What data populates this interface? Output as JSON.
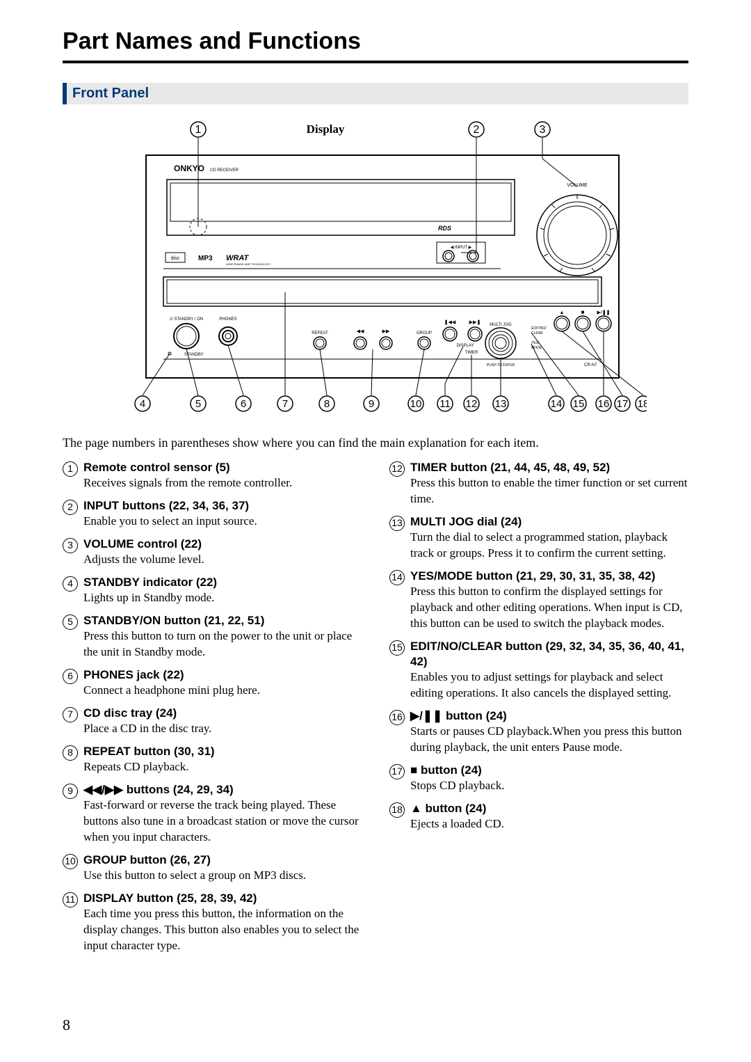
{
  "page": {
    "title": "Part Names and Functions",
    "section": "Front Panel",
    "intro": "The page numbers in parentheses show where you can find the main explanation for each item.",
    "page_number": "8"
  },
  "diagram": {
    "display_label": "Display",
    "brand": "ONKYO",
    "brand_sub": "CD RECEIVER",
    "rds": "RDS",
    "volume": "VOLUME",
    "input_label": "INPUT",
    "mp3": "MP3",
    "wrat": "WRAT",
    "wrat_sub": "WIDE RANGE AMP TECHNOLOGY",
    "standby_on": "STANDBY / ON",
    "standby": "STANDBY",
    "phones": "PHONES",
    "repeat": "REPEAT",
    "group": "GROUP",
    "multi_jog": "MULTI JOG",
    "push_enter": "PUSH TO ENTER",
    "model": "CR-N7",
    "display_btn": "DISPLAY",
    "timer_btn": "TIMER",
    "editno": "EDIT/NO/",
    "clear": "CLEAR",
    "yes": "YES/",
    "mode": "MODE",
    "top_callouts": [
      "1",
      "2",
      "3"
    ],
    "bottom_callouts": [
      "4",
      "5",
      "6",
      "7",
      "8",
      "9",
      "10",
      "11",
      "12",
      "13",
      "14",
      "15",
      "16",
      "17",
      "18"
    ]
  },
  "items_left": [
    {
      "n": "1",
      "title": "Remote control sensor (5)",
      "desc": "Receives signals from the remote controller."
    },
    {
      "n": "2",
      "title": "INPUT buttons (22, 34, 36, 37)",
      "desc": "Enable you to select an input source."
    },
    {
      "n": "3",
      "title": "VOLUME control (22)",
      "desc": "Adjusts the volume level."
    },
    {
      "n": "4",
      "title": "STANDBY indicator (22)",
      "desc": "Lights up in Standby mode."
    },
    {
      "n": "5",
      "title": "STANDBY/ON button (21, 22, 51)",
      "desc": "Press this button to turn on the power to the unit or place the unit in Standby mode."
    },
    {
      "n": "6",
      "title": "PHONES jack (22)",
      "desc": "Connect a headphone mini plug here."
    },
    {
      "n": "7",
      "title": "CD disc tray (24)",
      "desc": "Place a CD in the disc tray."
    },
    {
      "n": "8",
      "title": "REPEAT button (30, 31)",
      "desc": "Repeats CD playback."
    },
    {
      "n": "9",
      "title": "◀◀/▶▶ buttons (24, 29, 34)",
      "desc": "Fast-forward or reverse the track being played. These buttons also tune in a broadcast station or move the cursor when you input characters."
    },
    {
      "n": "10",
      "title": "GROUP button (26, 27)",
      "desc": "Use this button to select a group on MP3 discs."
    },
    {
      "n": "11",
      "title": "DISPLAY button (25, 28, 39, 42)",
      "desc": "Each time you press this button, the information on the display changes. This button also enables you to select the input character type."
    }
  ],
  "items_right": [
    {
      "n": "12",
      "title": "TIMER button (21, 44, 45, 48, 49, 52)",
      "desc": "Press this button to enable the timer function or set current time."
    },
    {
      "n": "13",
      "title": "MULTI JOG dial (24)",
      "desc": "Turn the dial to select a programmed station, playback track or groups. Press it to confirm the current setting."
    },
    {
      "n": "14",
      "title": "YES/MODE button (21, 29, 30, 31, 35, 38, 42)",
      "desc": "Press this button to confirm the displayed settings for playback and other editing operations. When input is CD, this button can be used to switch the playback modes."
    },
    {
      "n": "15",
      "title": "EDIT/NO/CLEAR button (29, 32, 34, 35, 36, 40, 41, 42)",
      "desc": "Enables you to adjust settings for playback and select editing operations. It also cancels the displayed setting."
    },
    {
      "n": "16",
      "title": "▶/❚❚ button (24)",
      "desc": "Starts or pauses CD playback.When you press this button during playback, the unit enters Pause mode."
    },
    {
      "n": "17",
      "title": "■ button (24)",
      "desc": "Stops CD playback."
    },
    {
      "n": "18",
      "title": "▲ button (24)",
      "desc": "Ejects a loaded CD."
    }
  ]
}
